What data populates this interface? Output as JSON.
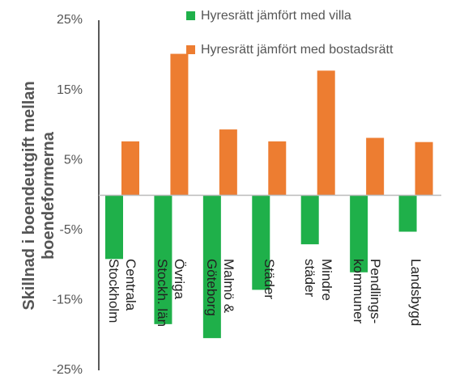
{
  "chart_data": {
    "type": "bar",
    "y_label": "Skillnad i boendeutgift mellan\nboendeformerna",
    "categories": [
      "Centrala\nStockholm",
      "Övriga\nStockh. län",
      "Malmö &\nGöteborg",
      "Städer",
      "Mindre\nstäder",
      "Pendlings-\nkommuner",
      "Landsbygd"
    ],
    "series": [
      {
        "name": "Hyresrätt jämfört med villa",
        "color": "#1fb04a",
        "values": [
          -9.1,
          -18.4,
          -20.4,
          -13.5,
          -7.0,
          -11.0,
          -5.2
        ]
      },
      {
        "name": "Hyresrätt jämfört med bostadsrätt",
        "color": "#ed7d31",
        "values": [
          7.7,
          20.2,
          9.4,
          7.7,
          17.8,
          8.2,
          7.6
        ]
      }
    ],
    "ylim": [
      -25,
      25
    ],
    "yticks": [
      {
        "value": -25,
        "label": "-25%"
      },
      {
        "value": -15,
        "label": "-15%"
      },
      {
        "value": -5,
        "label": "-5%"
      },
      {
        "value": 5,
        "label": "5%"
      },
      {
        "value": 15,
        "label": "15%"
      },
      {
        "value": 25,
        "label": "25%"
      }
    ],
    "grid": false,
    "legend": "top"
  }
}
